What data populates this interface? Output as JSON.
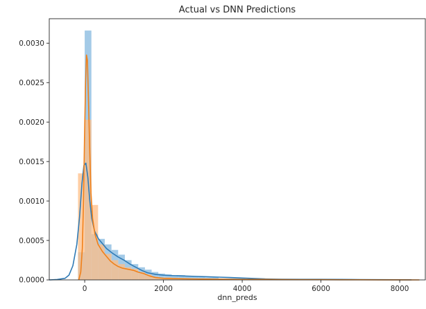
{
  "chart_data": {
    "type": "histogram_kde",
    "title": "Actual vs DNN Predictions",
    "xlabel": "dnn_preds",
    "ylabel": "",
    "xlim": [
      -900,
      8650
    ],
    "ylim": [
      0,
      0.00331
    ],
    "x_ticks": [
      0,
      2000,
      4000,
      6000,
      8000
    ],
    "y_ticks": [
      0.0,
      0.0005,
      0.001,
      0.0015,
      0.002,
      0.0025,
      0.003
    ],
    "y_tick_labels": [
      "0.0000",
      "0.0005",
      "0.0010",
      "0.0015",
      "0.0020",
      "0.0025",
      "0.0030"
    ],
    "grid": false,
    "legend": "none",
    "series": [
      {
        "color_bar": "#9ec7e6",
        "color_line": "#2f7ab5",
        "bin_width": 170,
        "bins": [
          {
            "x0": -170,
            "x1": 0,
            "density": 0.00035
          },
          {
            "x0": 0,
            "x1": 170,
            "density": 0.00316
          },
          {
            "x0": 170,
            "x1": 340,
            "density": 0.00058
          },
          {
            "x0": 340,
            "x1": 510,
            "density": 0.00052
          },
          {
            "x0": 510,
            "x1": 680,
            "density": 0.00045
          },
          {
            "x0": 680,
            "x1": 850,
            "density": 0.00038
          },
          {
            "x0": 850,
            "x1": 1020,
            "density": 0.00032
          },
          {
            "x0": 1020,
            "x1": 1190,
            "density": 0.00025
          },
          {
            "x0": 1190,
            "x1": 1360,
            "density": 0.0002
          },
          {
            "x0": 1360,
            "x1": 1530,
            "density": 0.00016
          },
          {
            "x0": 1530,
            "x1": 1700,
            "density": 0.00013
          },
          {
            "x0": 1700,
            "x1": 1870,
            "density": 0.0001
          },
          {
            "x0": 1870,
            "x1": 2040,
            "density": 8e-05
          },
          {
            "x0": 2040,
            "x1": 2210,
            "density": 7e-05
          },
          {
            "x0": 2210,
            "x1": 2380,
            "density": 6e-05
          },
          {
            "x0": 2380,
            "x1": 2550,
            "density": 6e-05
          },
          {
            "x0": 2550,
            "x1": 2720,
            "density": 5e-05
          },
          {
            "x0": 2720,
            "x1": 2890,
            "density": 4e-05
          },
          {
            "x0": 2890,
            "x1": 3060,
            "density": 4e-05
          },
          {
            "x0": 3060,
            "x1": 3230,
            "density": 3e-05
          },
          {
            "x0": 3230,
            "x1": 3400,
            "density": 3e-05
          },
          {
            "x0": 3400,
            "x1": 3570,
            "density": 2e-05
          },
          {
            "x0": 3570,
            "x1": 3740,
            "density": 2e-05
          },
          {
            "x0": 3740,
            "x1": 3910,
            "density": 2e-05
          },
          {
            "x0": 3910,
            "x1": 4080,
            "density": 2e-05
          },
          {
            "x0": 4080,
            "x1": 4250,
            "density": 1e-05
          },
          {
            "x0": 4250,
            "x1": 4420,
            "density": 1e-05
          },
          {
            "x0": 4420,
            "x1": 4590,
            "density": 1e-05
          },
          {
            "x0": 4590,
            "x1": 4760,
            "density": 1e-05
          },
          {
            "x0": 4760,
            "x1": 4930,
            "density": 1e-05
          },
          {
            "x0": 5610,
            "x1": 5780,
            "density": 1e-05
          },
          {
            "x0": 6290,
            "x1": 6460,
            "density": 1e-05
          }
        ],
        "kde": [
          [
            -900,
            0
          ],
          [
            -700,
            5e-06
          ],
          [
            -500,
            2e-05
          ],
          [
            -400,
            6e-05
          ],
          [
            -300,
            0.00018
          ],
          [
            -200,
            0.00045
          ],
          [
            -130,
            0.0008
          ],
          [
            -70,
            0.00122
          ],
          [
            -20,
            0.00145
          ],
          [
            30,
            0.00148
          ],
          [
            80,
            0.0013
          ],
          [
            130,
            0.001
          ],
          [
            180,
            0.00078
          ],
          [
            250,
            0.00062
          ],
          [
            350,
            0.00052
          ],
          [
            450,
            0.00046
          ],
          [
            550,
            0.0004
          ],
          [
            700,
            0.00034
          ],
          [
            850,
            0.00029
          ],
          [
            1000,
            0.00025
          ],
          [
            1150,
            0.0002
          ],
          [
            1300,
            0.00016
          ],
          [
            1450,
            0.00012
          ],
          [
            1600,
            9e-05
          ],
          [
            1800,
            7e-05
          ],
          [
            2000,
            6e-05
          ],
          [
            2200,
            5.5e-05
          ],
          [
            2500,
            5e-05
          ],
          [
            2800,
            4.5e-05
          ],
          [
            3100,
            4e-05
          ],
          [
            3400,
            3.5e-05
          ],
          [
            3700,
            3e-05
          ],
          [
            4000,
            2.4e-05
          ],
          [
            4300,
            1.8e-05
          ],
          [
            4600,
            1.2e-05
          ],
          [
            5000,
            8e-06
          ],
          [
            5500,
            7e-06
          ],
          [
            6000,
            7e-06
          ],
          [
            6500,
            6e-06
          ],
          [
            7000,
            4e-06
          ],
          [
            7500,
            3e-06
          ],
          [
            8000,
            2e-06
          ],
          [
            8300,
            1e-06
          ]
        ]
      },
      {
        "color_bar": "#ffbe86",
        "color_line": "#f08019",
        "bin_width": 170,
        "bins": [
          {
            "x0": -170,
            "x1": 0,
            "density": 0.00135
          },
          {
            "x0": 0,
            "x1": 170,
            "density": 0.00203
          },
          {
            "x0": 170,
            "x1": 340,
            "density": 0.00095
          },
          {
            "x0": 340,
            "x1": 510,
            "density": 0.00045
          },
          {
            "x0": 510,
            "x1": 680,
            "density": 0.00033
          },
          {
            "x0": 680,
            "x1": 850,
            "density": 0.00025
          },
          {
            "x0": 850,
            "x1": 1020,
            "density": 0.0002
          },
          {
            "x0": 1020,
            "x1": 1190,
            "density": 0.00016
          },
          {
            "x0": 1190,
            "x1": 1360,
            "density": 0.00014
          },
          {
            "x0": 1360,
            "x1": 1530,
            "density": 0.0001
          },
          {
            "x0": 1530,
            "x1": 1700,
            "density": 7e-05
          },
          {
            "x0": 1700,
            "x1": 1870,
            "density": 4e-05
          },
          {
            "x0": 1870,
            "x1": 2040,
            "density": 3e-05
          },
          {
            "x0": 2040,
            "x1": 2210,
            "density": 3e-05
          },
          {
            "x0": 2210,
            "x1": 2380,
            "density": 2e-05
          },
          {
            "x0": 2380,
            "x1": 2550,
            "density": 2e-05
          },
          {
            "x0": 2550,
            "x1": 2720,
            "density": 1e-05
          },
          {
            "x0": 2720,
            "x1": 2890,
            "density": 1e-05
          },
          {
            "x0": 2890,
            "x1": 3060,
            "density": 1e-05
          },
          {
            "x0": 3060,
            "x1": 3230,
            "density": 1e-05
          },
          {
            "x0": 4080,
            "x1": 4250,
            "density": 1e-05
          },
          {
            "x0": 4590,
            "x1": 4760,
            "density": 1e-05
          },
          {
            "x0": 6120,
            "x1": 6290,
            "density": 1e-05
          }
        ],
        "kde": [
          [
            -150,
            0
          ],
          [
            -100,
            0.0001
          ],
          [
            -60,
            0.0004
          ],
          [
            -30,
            0.001
          ],
          [
            -5,
            0.0018
          ],
          [
            20,
            0.00245
          ],
          [
            45,
            0.00285
          ],
          [
            70,
            0.00278
          ],
          [
            100,
            0.0022
          ],
          [
            130,
            0.0016
          ],
          [
            160,
            0.0011
          ],
          [
            200,
            0.00078
          ],
          [
            260,
            0.00058
          ],
          [
            340,
            0.00045
          ],
          [
            450,
            0.00036
          ],
          [
            550,
            0.0003
          ],
          [
            650,
            0.00024
          ],
          [
            750,
            0.0002
          ],
          [
            850,
            0.00017
          ],
          [
            950,
            0.00015
          ],
          [
            1050,
            0.00014
          ],
          [
            1150,
            0.00013
          ],
          [
            1250,
            0.00012
          ],
          [
            1350,
            0.0001
          ],
          [
            1500,
            8e-05
          ],
          [
            1650,
            5e-05
          ],
          [
            1800,
            3e-05
          ],
          [
            2000,
            2e-05
          ],
          [
            2200,
            1.8e-05
          ],
          [
            2500,
            1.5e-05
          ],
          [
            2800,
            1.2e-05
          ],
          [
            3100,
            1e-05
          ],
          [
            3500,
            8e-06
          ],
          [
            4000,
            6e-06
          ],
          [
            4500,
            6e-06
          ],
          [
            5000,
            4e-06
          ],
          [
            5500,
            3e-06
          ],
          [
            6000,
            3e-06
          ],
          [
            6500,
            2e-06
          ],
          [
            7000,
            2e-06
          ],
          [
            7500,
            1e-06
          ],
          [
            8000,
            1e-06
          ],
          [
            8500,
            0
          ]
        ]
      }
    ]
  }
}
